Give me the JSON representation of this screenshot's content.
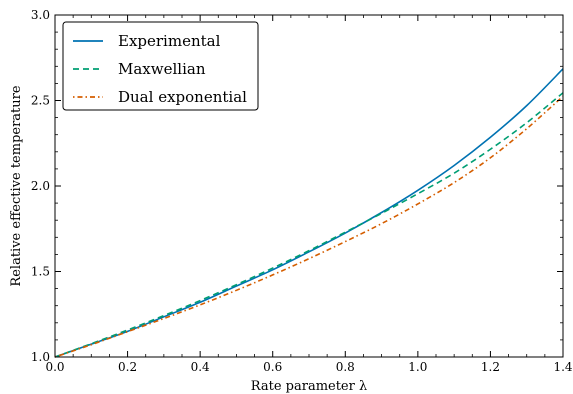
{
  "chart_data": {
    "type": "line",
    "title": "",
    "xlabel": "Rate parameter λ",
    "ylabel": "Relative effective temperature",
    "xlim": [
      0.0,
      1.4
    ],
    "ylim": [
      1.0,
      3.0
    ],
    "xticks": [
      0.0,
      0.2,
      0.4,
      0.6,
      0.8,
      1.0,
      1.2,
      1.4
    ],
    "xtick_labels": [
      "0.0",
      "0.2",
      "0.4",
      "0.6",
      "0.8",
      "1.0",
      "1.2",
      "1.4"
    ],
    "yticks": [
      1.0,
      1.5,
      2.0,
      2.5,
      3.0
    ],
    "ytick_labels": [
      "1.0",
      "1.5",
      "2.0",
      "2.5",
      "3.0"
    ],
    "grid": false,
    "legend_position": "top-left",
    "series": [
      {
        "name": "Experimental",
        "style": "solid",
        "color": "#0072b2",
        "x": [
          0.0,
          0.1,
          0.2,
          0.3,
          0.4,
          0.5,
          0.6,
          0.7,
          0.8,
          0.9,
          1.0,
          1.1,
          1.2,
          1.3,
          1.4
        ],
        "y": [
          1.0,
          1.075,
          1.15,
          1.235,
          1.32,
          1.415,
          1.51,
          1.615,
          1.725,
          1.845,
          1.975,
          2.12,
          2.285,
          2.47,
          2.685
        ]
      },
      {
        "name": "Maxwellian",
        "style": "dashed",
        "color": "#009e73",
        "x": [
          0.0,
          0.1,
          0.2,
          0.3,
          0.4,
          0.5,
          0.6,
          0.7,
          0.8,
          0.9,
          1.0,
          1.1,
          1.2,
          1.3,
          1.4
        ],
        "y": [
          1.0,
          1.078,
          1.158,
          1.242,
          1.33,
          1.423,
          1.52,
          1.622,
          1.73,
          1.84,
          1.955,
          2.075,
          2.215,
          2.37,
          2.545
        ]
      },
      {
        "name": "Dual exponential",
        "style": "dashdot",
        "color": "#d55e00",
        "x": [
          0.0,
          0.1,
          0.2,
          0.3,
          0.4,
          0.5,
          0.6,
          0.7,
          0.8,
          0.9,
          1.0,
          1.1,
          1.2,
          1.3,
          1.4
        ],
        "y": [
          1.0,
          1.072,
          1.148,
          1.225,
          1.305,
          1.39,
          1.48,
          1.575,
          1.675,
          1.78,
          1.895,
          2.02,
          2.165,
          2.335,
          2.525
        ]
      }
    ]
  }
}
